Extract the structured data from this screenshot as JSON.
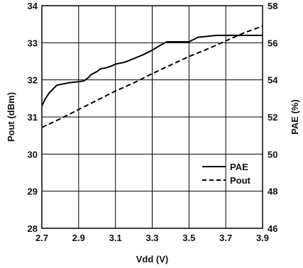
{
  "chart_data": {
    "type": "line",
    "xlabel": "Vdd (V)",
    "ylabel_left": "Pout (dBm)",
    "ylabel_right": "PAE (%)",
    "xlim": [
      2.7,
      3.9
    ],
    "ylim_left": [
      28,
      34
    ],
    "ylim_right": [
      46,
      58
    ],
    "x_ticks": [
      "2.7",
      "2.9",
      "3.1",
      "3.3",
      "3.5",
      "3.7",
      "3.9"
    ],
    "y_left_ticks": [
      "28",
      "29",
      "30",
      "31",
      "32",
      "33",
      "34"
    ],
    "y_right_ticks": [
      "46",
      "48",
      "50",
      "52",
      "54",
      "56",
      "58"
    ],
    "grid": true,
    "legend_position": "bottom-right",
    "series": [
      {
        "name": "PAE",
        "axis": "right",
        "style": "solid",
        "color": "#000000",
        "x": [
          2.7,
          2.72,
          2.74,
          2.76,
          2.78,
          2.8,
          2.85,
          2.9,
          2.93,
          2.95,
          2.97,
          3.0,
          3.02,
          3.05,
          3.08,
          3.1,
          3.15,
          3.2,
          3.25,
          3.3,
          3.35,
          3.38,
          3.4,
          3.45,
          3.5,
          3.52,
          3.55,
          3.6,
          3.65,
          3.7,
          3.8,
          3.9
        ],
        "values": [
          52.6,
          53.0,
          53.3,
          53.5,
          53.7,
          53.75,
          53.85,
          53.9,
          53.95,
          54.1,
          54.3,
          54.45,
          54.6,
          54.65,
          54.75,
          54.85,
          54.95,
          55.15,
          55.35,
          55.6,
          55.9,
          56.05,
          56.05,
          56.05,
          56.05,
          56.15,
          56.3,
          56.35,
          56.4,
          56.4,
          56.4,
          56.4
        ]
      },
      {
        "name": "Pout",
        "axis": "left",
        "style": "dashed",
        "color": "#000000",
        "x": [
          2.7,
          2.8,
          2.9,
          3.0,
          3.1,
          3.2,
          3.3,
          3.4,
          3.5,
          3.6,
          3.7,
          3.8,
          3.9
        ],
        "values": [
          30.72,
          30.95,
          31.2,
          31.45,
          31.7,
          31.92,
          32.17,
          32.4,
          32.63,
          32.83,
          33.05,
          33.27,
          33.45
        ]
      }
    ]
  }
}
